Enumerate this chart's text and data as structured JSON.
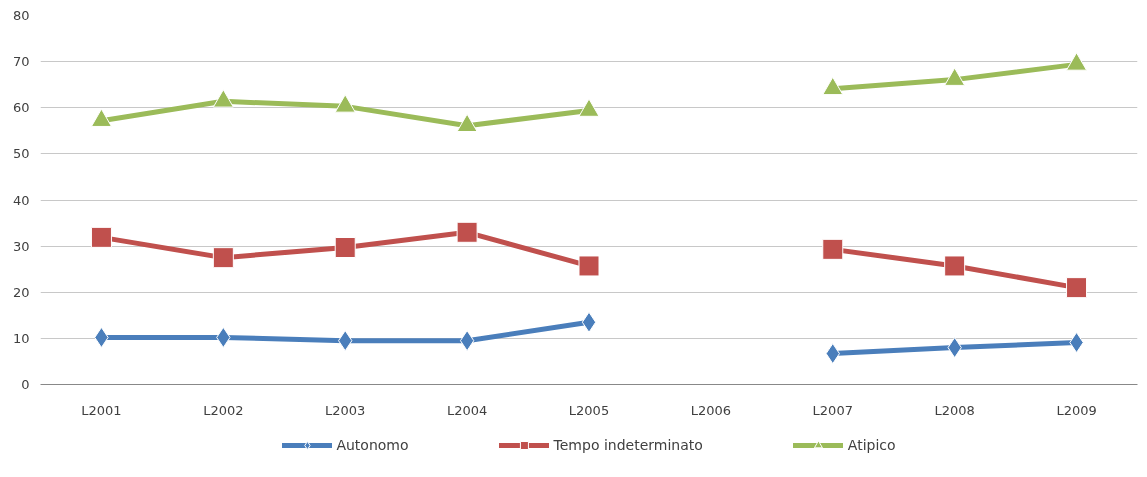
{
  "chart_data": {
    "type": "line",
    "categories": [
      "L2001",
      "L2002",
      "L2003",
      "L2004",
      "L2005",
      "L2006",
      "L2007",
      "L2008",
      "L2009"
    ],
    "series": [
      {
        "name": "Autonomo",
        "color": "#4a7ebb",
        "marker": "diamond",
        "values": [
          10.2,
          10.2,
          9.5,
          9.5,
          13.5,
          null,
          6.7,
          8,
          9.1
        ]
      },
      {
        "name": "Tempo indeterminato",
        "color": "#c0504d",
        "marker": "square",
        "values": [
          31.9,
          27.5,
          29.7,
          33,
          25.7,
          null,
          29.3,
          25.7,
          21
        ]
      },
      {
        "name": "Atipico",
        "color": "#9bbb59",
        "marker": "triangle",
        "values": [
          57.2,
          61.4,
          60.3,
          56.1,
          59.4,
          null,
          64.1,
          66.1,
          69.4
        ]
      }
    ],
    "ylim": [
      0,
      80
    ],
    "yticks": [
      0,
      10,
      20,
      30,
      40,
      50,
      60,
      70,
      80
    ],
    "grid": "y",
    "legend": "bottom"
  }
}
